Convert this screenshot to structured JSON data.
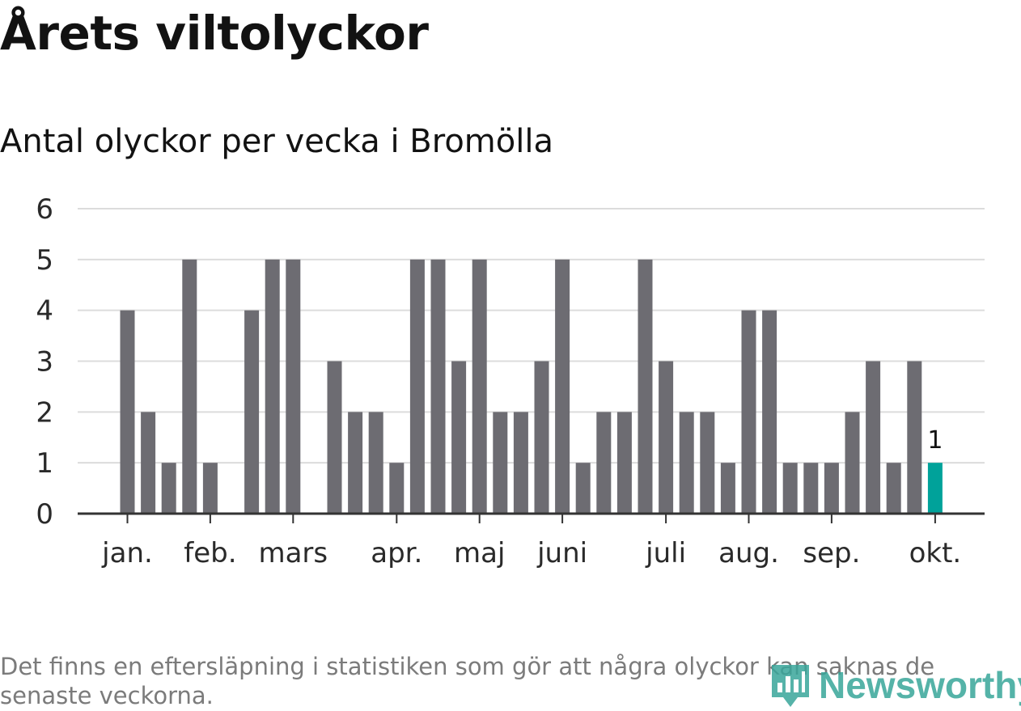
{
  "title": "Årets viltolyckor",
  "subtitle": "Antal olyckor per vecka i Bromölla",
  "footnote": "Det finns en eftersläpning i statistiken som gör att några olyckor kan saknas de senaste veckorna.",
  "brand": {
    "name": "Newsworthy",
    "icon": "bar-chart-logo-icon",
    "color": "#38a69a"
  },
  "colors": {
    "bar": "#6d6c72",
    "highlight": "#00a29a",
    "grid": "#dcdcdc",
    "axis": "#333333"
  },
  "chart_data": {
    "type": "bar",
    "title": "Antal olyckor per vecka i Bromölla",
    "xlabel": "",
    "ylabel": "",
    "ylim": [
      0,
      6
    ],
    "yticks": [
      0,
      1,
      2,
      3,
      4,
      5,
      6
    ],
    "grid": true,
    "weeks": [
      1,
      2,
      3,
      4,
      5,
      6,
      7,
      8,
      9,
      10,
      11,
      12,
      13,
      14,
      15,
      16,
      17,
      18,
      19,
      20,
      21,
      22,
      23,
      24,
      25,
      26,
      27,
      28,
      29,
      30,
      31,
      32,
      33,
      34,
      35,
      36,
      37,
      38,
      39,
      40
    ],
    "values": [
      4,
      2,
      1,
      5,
      1,
      0,
      4,
      5,
      5,
      0,
      3,
      2,
      2,
      1,
      5,
      5,
      3,
      5,
      2,
      2,
      3,
      5,
      1,
      2,
      2,
      5,
      3,
      2,
      2,
      1,
      4,
      4,
      1,
      1,
      1,
      2,
      3,
      1,
      3,
      1
    ],
    "highlight_index": 39,
    "data_labels": [
      {
        "index": 39,
        "text": "1"
      }
    ],
    "x_tick_labels": [
      {
        "label": "jan.",
        "week": 1
      },
      {
        "label": "feb.",
        "week": 5
      },
      {
        "label": "mars",
        "week": 9
      },
      {
        "label": "apr.",
        "week": 14
      },
      {
        "label": "maj",
        "week": 18
      },
      {
        "label": "juni",
        "week": 22
      },
      {
        "label": "juli",
        "week": 27
      },
      {
        "label": "aug.",
        "week": 31
      },
      {
        "label": "sep.",
        "week": 35
      },
      {
        "label": "okt.",
        "week": 40
      }
    ]
  }
}
